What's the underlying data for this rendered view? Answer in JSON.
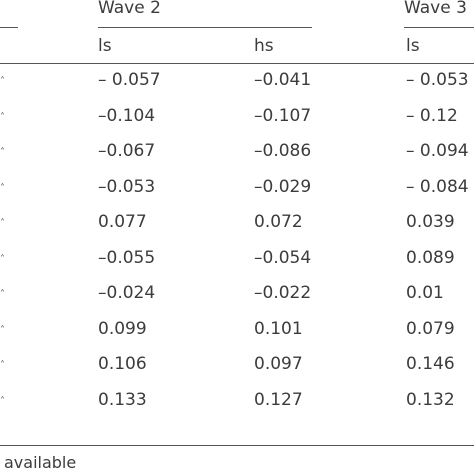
{
  "table": {
    "wave_headers": [
      {
        "label": "Wave 2"
      },
      {
        "label": "Wave 3"
      }
    ],
    "sub_headers": [
      "ls",
      "hs",
      "ls"
    ],
    "rows": [
      [
        "– 0.057",
        "–0.041",
        "– 0.053"
      ],
      [
        "–0.104",
        "–0.107",
        "– 0.12"
      ],
      [
        "–0.067",
        "–0.086",
        "– 0.094"
      ],
      [
        "–0.053",
        "–0.029",
        "– 0.084"
      ],
      [
        "0.077",
        "0.072",
        "0.039"
      ],
      [
        "–0.055",
        "–0.054",
        "0.089"
      ],
      [
        "–0.024",
        "–0.022",
        "0.01"
      ],
      [
        "0.099",
        "0.101",
        "0.079"
      ],
      [
        "0.106",
        "0.097",
        "0.146"
      ],
      [
        "0.133",
        "0.127",
        "0.132"
      ]
    ]
  },
  "footnote": "available"
}
